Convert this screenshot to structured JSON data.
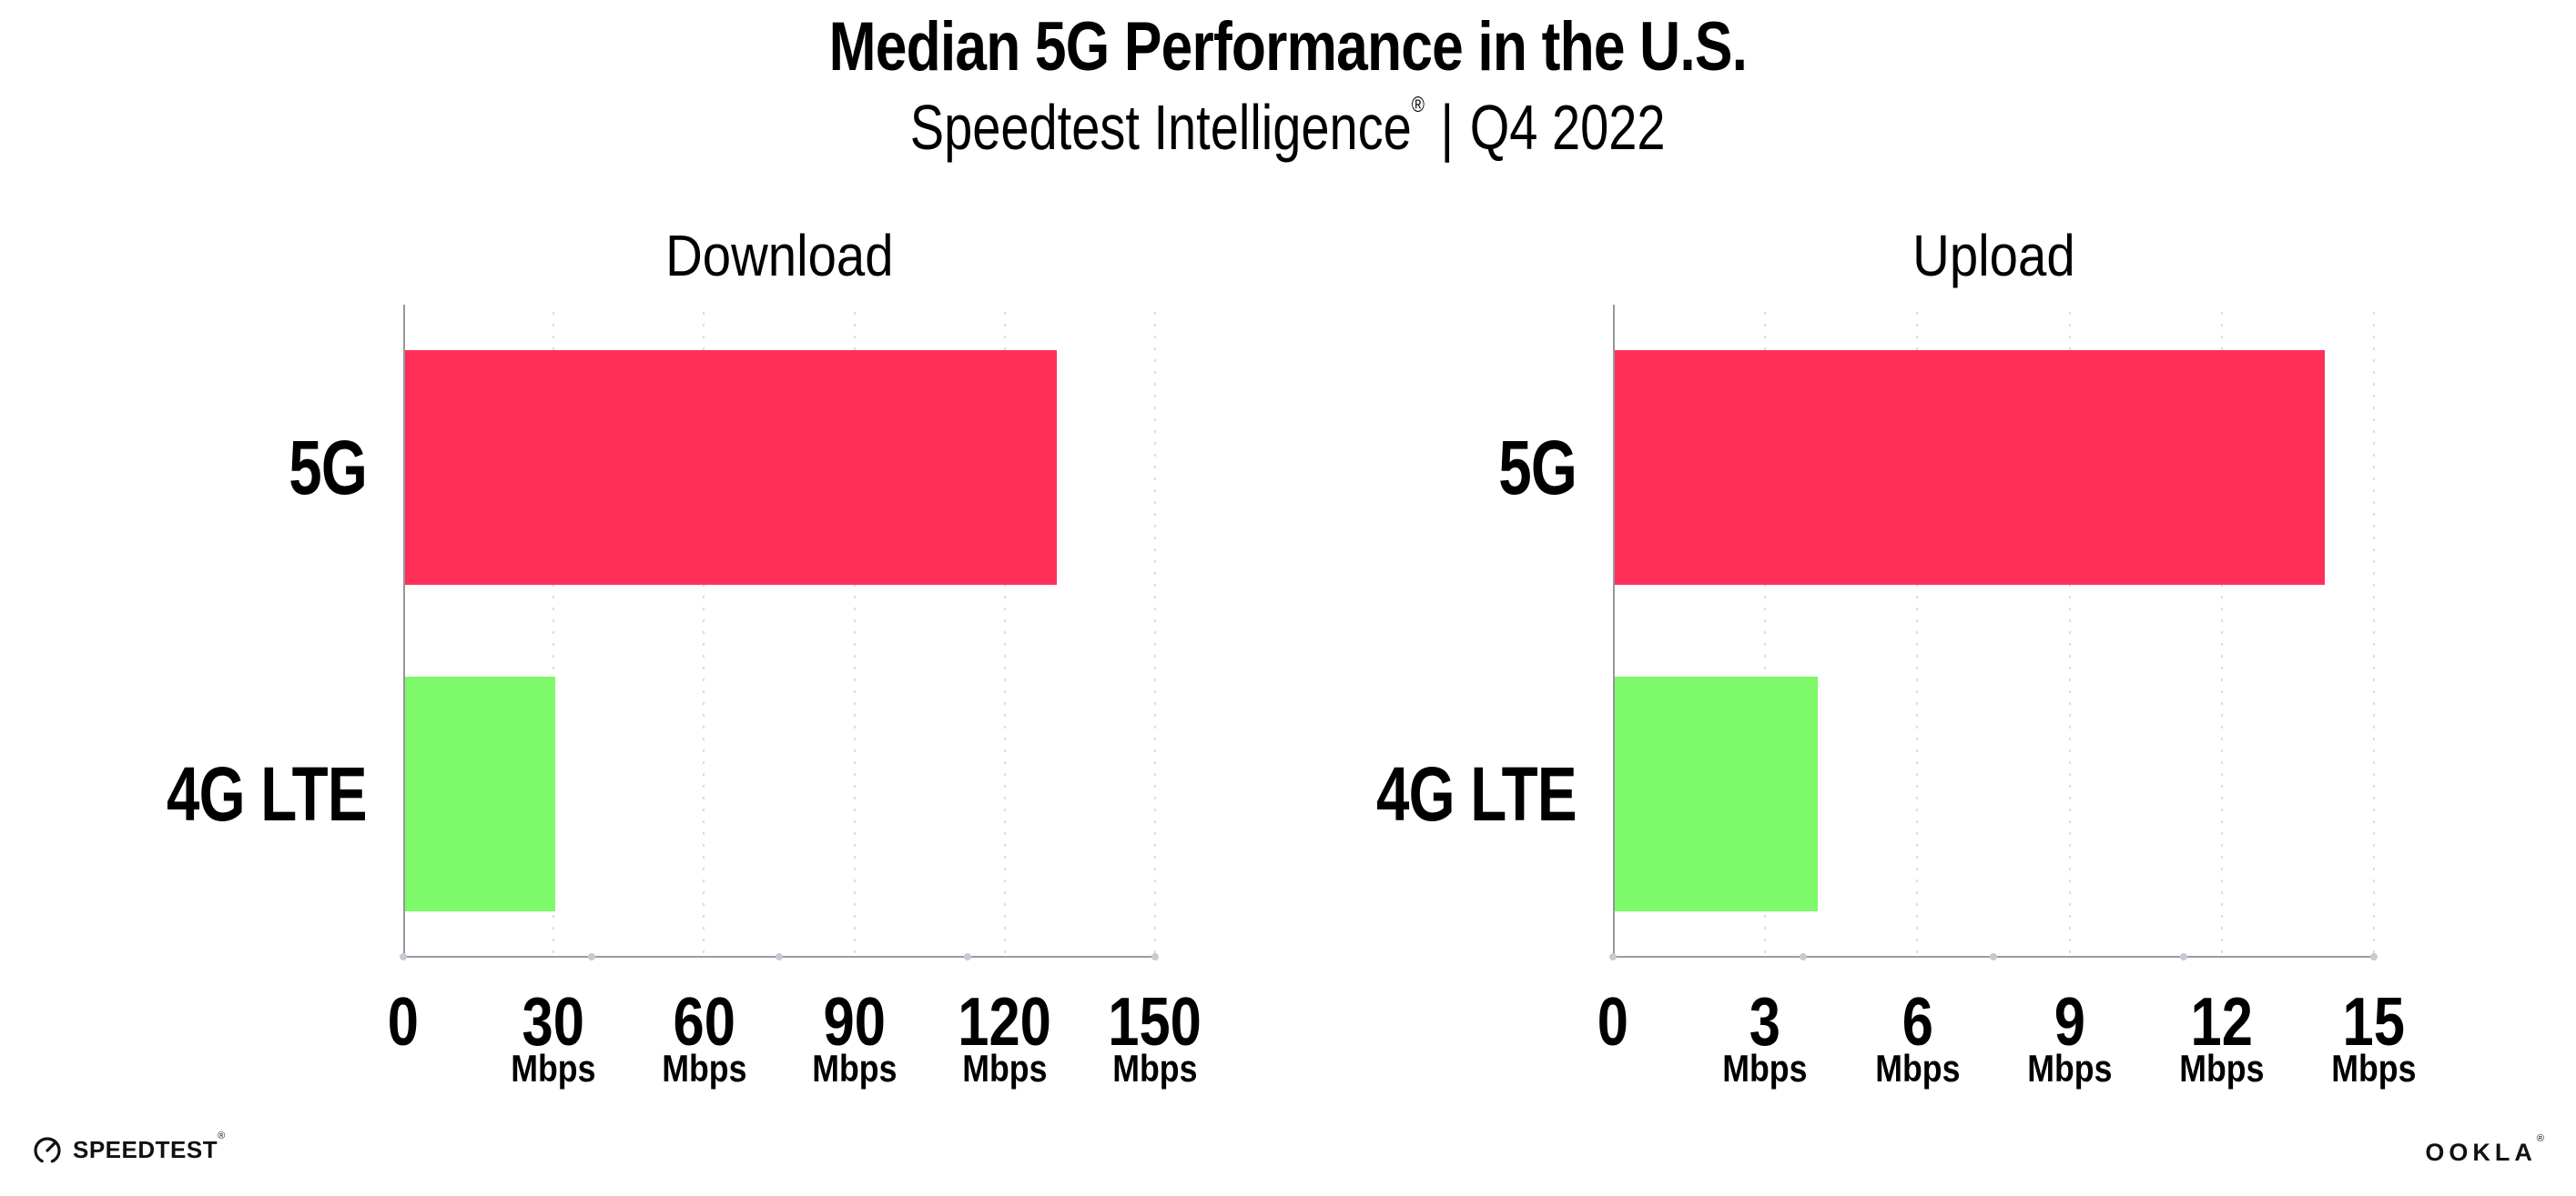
{
  "header": {
    "title": "Median 5G Performance in the U.S.",
    "subtitle_brand": "Speedtest Intelligence",
    "subtitle_reg": "®",
    "subtitle_sep": "|",
    "subtitle_period": "Q4 2022"
  },
  "footer": {
    "speedtest_label": "SPEEDTEST",
    "speedtest_reg": "®",
    "ookla_label": "OOKLA",
    "ookla_reg": "®"
  },
  "colors": {
    "bar_5g": "#FF2F58",
    "bar_4g_lte": "#7DF969",
    "axis_line": "#9b9ba1",
    "grid_dots": "#dbdbe7",
    "text": "#000000"
  },
  "chart_data": [
    {
      "type": "bar",
      "orientation": "horizontal",
      "title": "Download",
      "categories": [
        "5G",
        "4G LTE"
      ],
      "values": [
        130,
        30
      ],
      "unit": "Mbps",
      "xlabel": "",
      "xlim": [
        0,
        150
      ],
      "xticks": [
        0,
        30,
        60,
        90,
        120,
        150
      ],
      "tick_unit": "Mbps",
      "grid": "vertical-dotted",
      "legend": "none",
      "bar_colors": [
        "#FF2F58",
        "#7DF969"
      ]
    },
    {
      "type": "bar",
      "orientation": "horizontal",
      "title": "Upload",
      "categories": [
        "5G",
        "4G LTE"
      ],
      "values": [
        14,
        4
      ],
      "unit": "Mbps",
      "xlabel": "",
      "xlim": [
        0,
        15
      ],
      "xticks": [
        0,
        3,
        6,
        9,
        12,
        15
      ],
      "tick_unit": "Mbps",
      "grid": "vertical-dotted",
      "legend": "none",
      "bar_colors": [
        "#FF2F58",
        "#7DF969"
      ]
    }
  ]
}
